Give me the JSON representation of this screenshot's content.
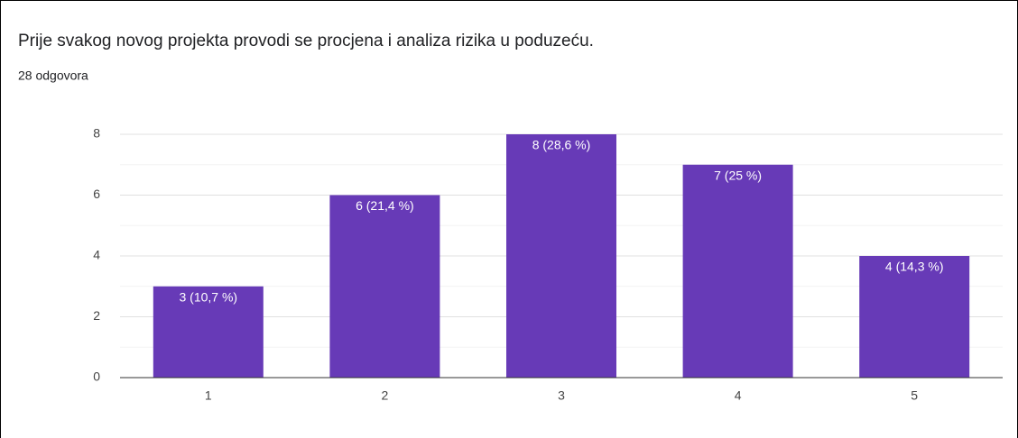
{
  "chart_data": {
    "type": "bar",
    "title": "Prije svakog novog projekta provodi se procjena i analiza rizika u poduzeću.",
    "subtitle": "28 odgovora",
    "categories": [
      "1",
      "2",
      "3",
      "4",
      "5"
    ],
    "values": [
      3,
      6,
      8,
      7,
      4
    ],
    "value_labels": [
      "3 (10,7 %)",
      "6 (21,4 %)",
      "8 (28,6 %)",
      "7 (25 %)",
      "4 (14,3 %)"
    ],
    "color": "#673ab7",
    "ylim": [
      0,
      8
    ],
    "yticks": [
      0,
      2,
      4,
      6,
      8
    ],
    "minor_yticks": [
      1,
      3,
      5,
      7
    ],
    "grid": true
  }
}
